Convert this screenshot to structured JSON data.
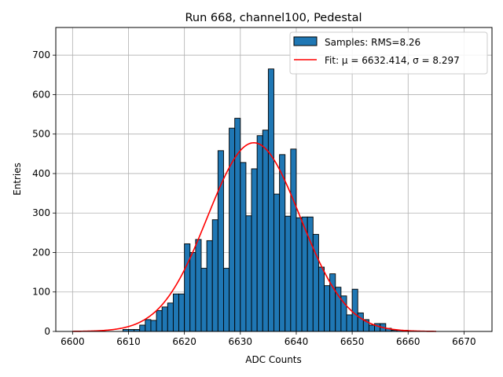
{
  "chart_data": {
    "type": "bar",
    "title": "Run 668, channel100, Pedestal",
    "xlabel": "ADC Counts",
    "ylabel": "Entries",
    "xlim": [
      6597,
      6675
    ],
    "ylim": [
      0,
      770
    ],
    "xticks": [
      6600,
      6610,
      6620,
      6630,
      6640,
      6650,
      6660,
      6670
    ],
    "yticks": [
      0,
      100,
      200,
      300,
      400,
      500,
      600,
      700
    ],
    "grid": true,
    "legend_position": "top-right",
    "histogram": {
      "name": "Samples: RMS=8.26",
      "bin_width": 1,
      "bin_start": 6600,
      "counts": [
        0,
        0,
        0,
        0,
        0,
        0,
        0,
        0,
        0,
        5,
        5,
        5,
        16,
        30,
        28,
        53,
        62,
        72,
        95,
        95,
        222,
        200,
        233,
        160,
        230,
        283,
        458,
        160,
        515,
        540,
        428,
        293,
        412,
        496,
        510,
        665,
        348,
        448,
        292,
        462,
        288,
        290,
        290,
        246,
        163,
        116,
        146,
        112,
        90,
        42,
        107,
        47,
        30,
        16,
        20,
        20,
        8,
        3,
        3,
        3,
        2,
        0,
        0,
        0,
        0,
        0,
        0,
        0,
        0,
        0,
        0,
        0
      ]
    },
    "fit": {
      "name": "Fit: μ = 6632.414, σ = 8.297",
      "mu": 6632.414,
      "sigma": 8.297,
      "amplitude": 478,
      "x_range": [
        6600,
        6665
      ],
      "color": "#ff0000"
    },
    "colors": {
      "bar_fill": "#1f77b4",
      "bar_edge": "#000000",
      "grid": "#b0b0b0"
    }
  }
}
